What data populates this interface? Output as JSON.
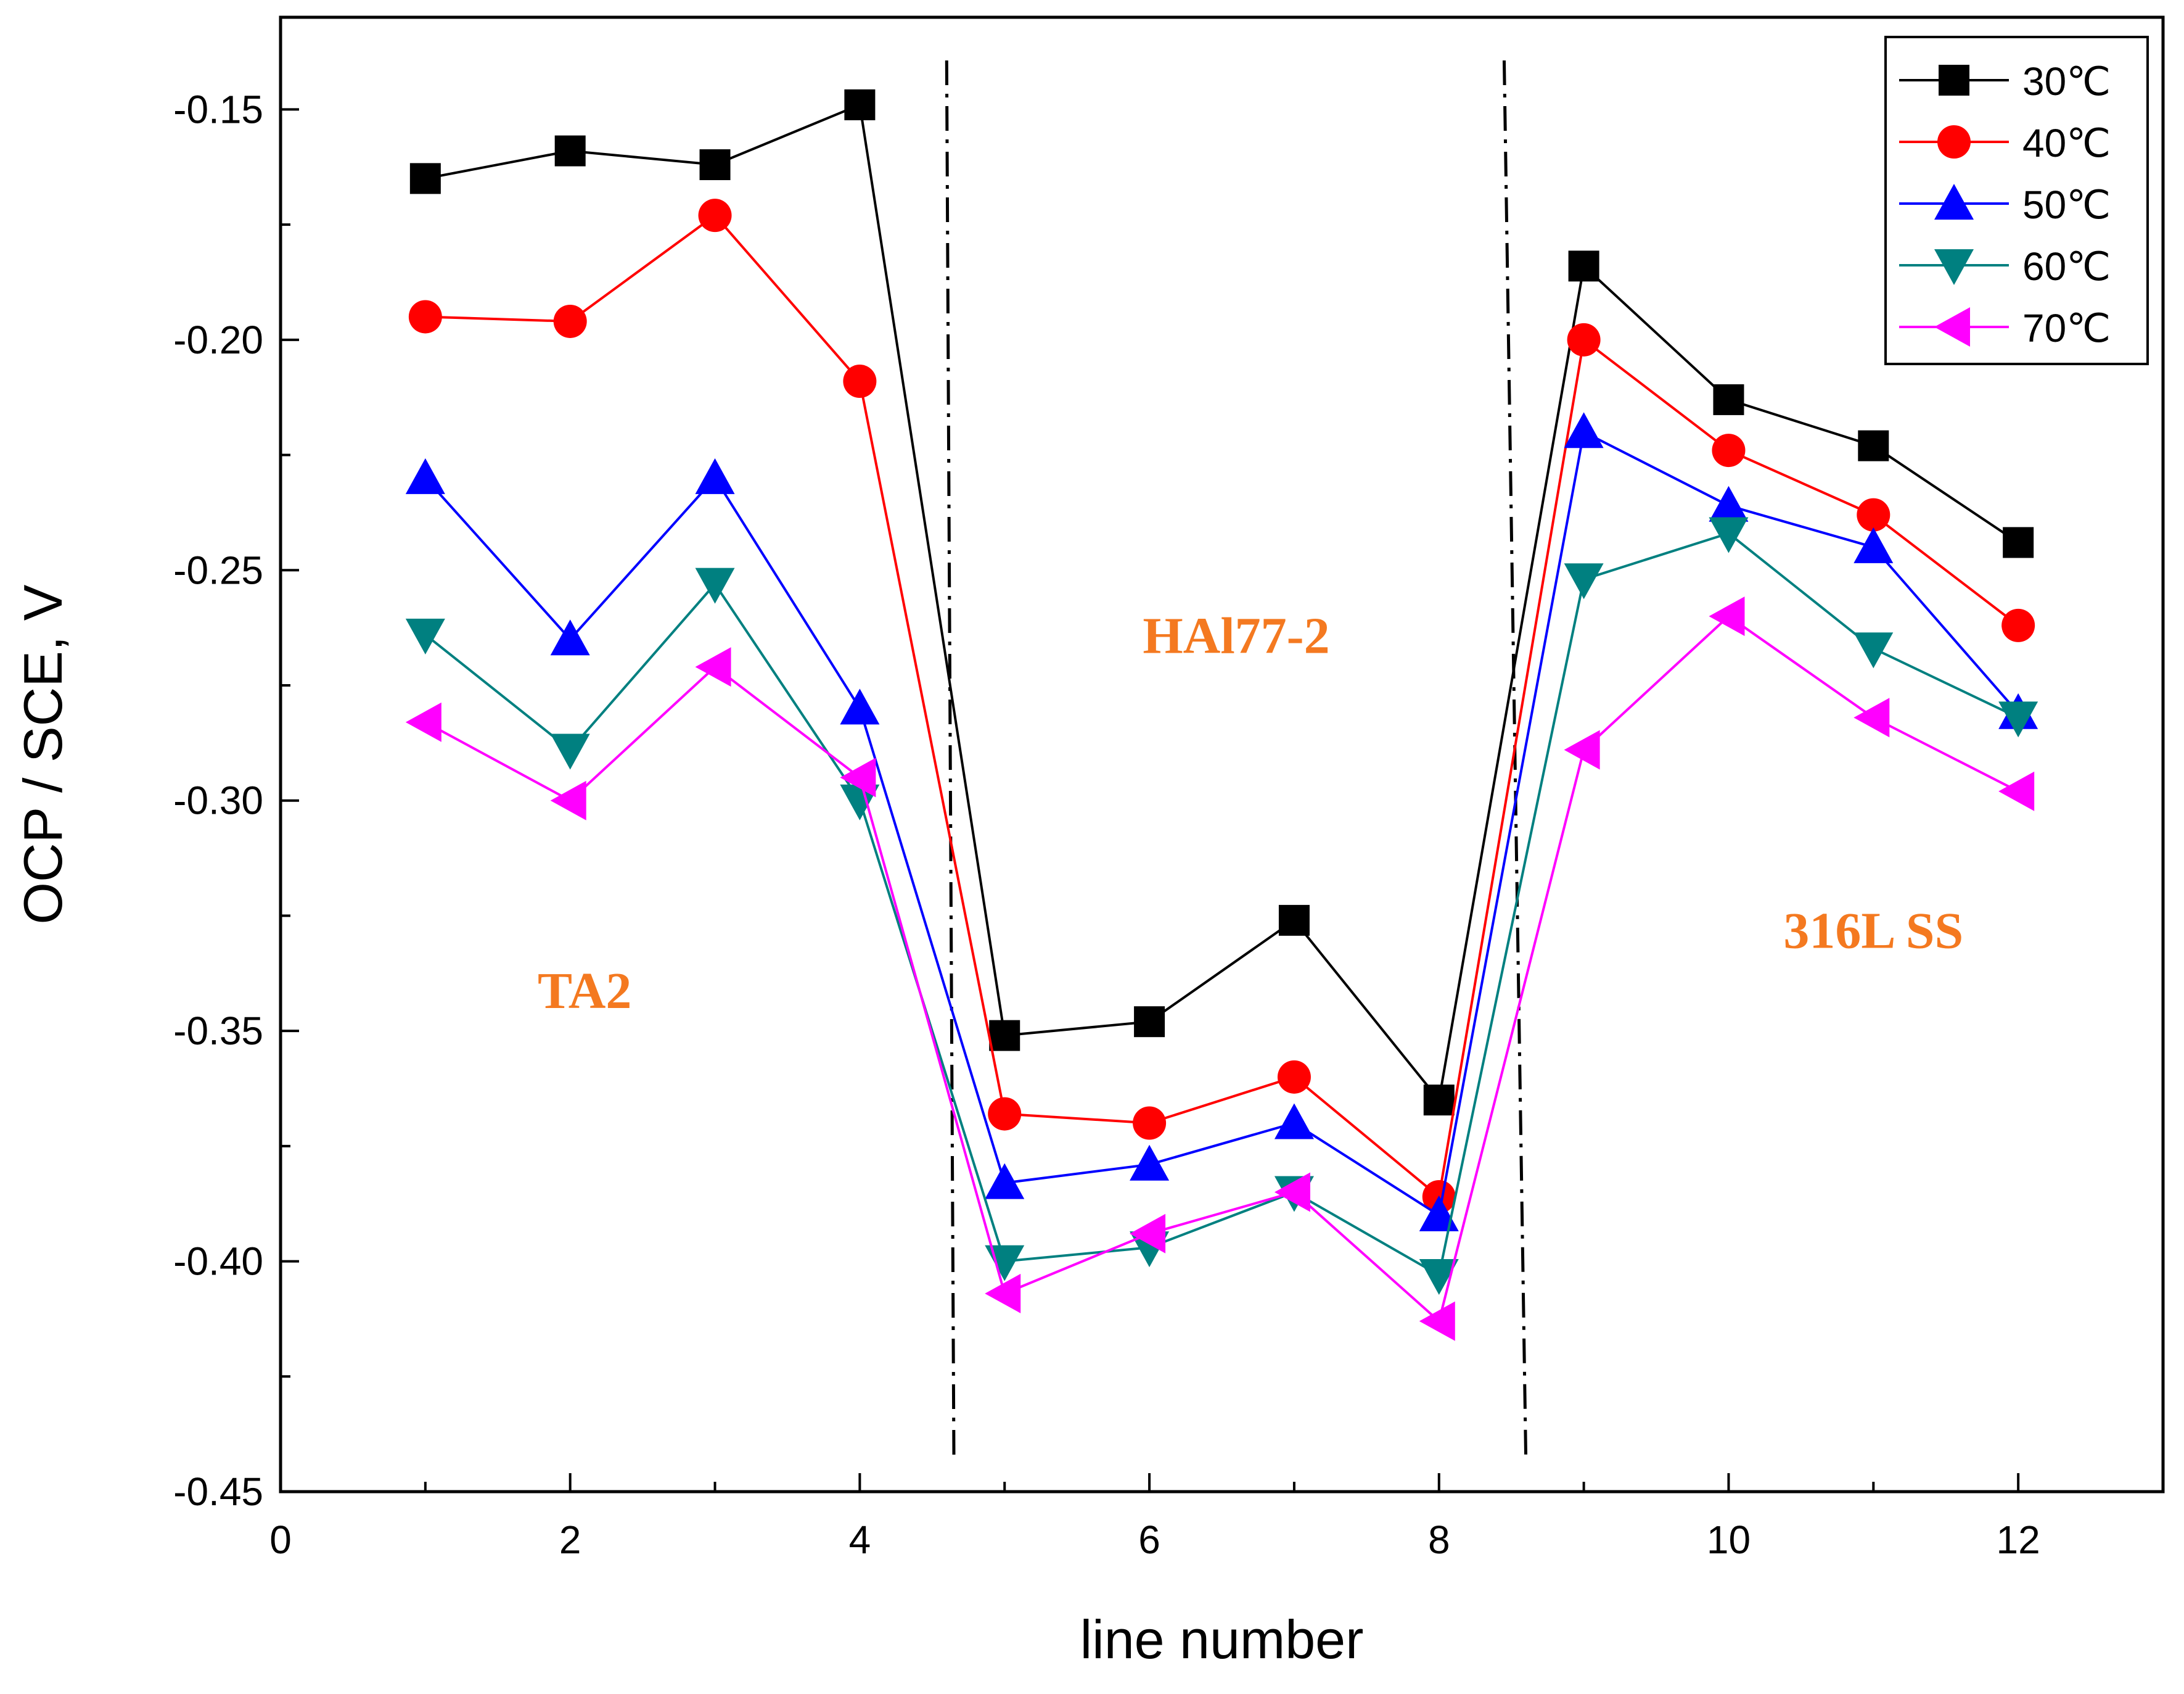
{
  "chart_data": {
    "type": "line",
    "title": "",
    "xlabel": "line number",
    "ylabel": "OCP / SCE, V",
    "xlim": [
      0,
      13
    ],
    "ylim": [
      -0.45,
      -0.13
    ],
    "xticks": [
      0,
      2,
      4,
      6,
      8,
      10,
      12
    ],
    "xtick_labels": [
      "0",
      "2",
      "4",
      "6",
      "8",
      "10",
      "12"
    ],
    "yticks": [
      -0.45,
      -0.4,
      -0.35,
      -0.3,
      -0.25,
      -0.2,
      -0.15
    ],
    "ytick_labels": [
      "-0.45",
      "-0.40",
      "-0.35",
      "-0.30",
      "-0.25",
      "-0.20",
      "-0.15"
    ],
    "grid": false,
    "legend_position": "top-right",
    "x": [
      1,
      2,
      3,
      4,
      5,
      6,
      7,
      8,
      9,
      10,
      11,
      12
    ],
    "series": [
      {
        "name": "30℃",
        "color": "#000000",
        "marker": "square",
        "values": [
          -0.165,
          -0.159,
          -0.162,
          -0.149,
          -0.351,
          -0.348,
          -0.326,
          -0.365,
          -0.184,
          -0.213,
          -0.223,
          -0.244
        ]
      },
      {
        "name": "40℃",
        "color": "#ff0000",
        "marker": "circle",
        "values": [
          -0.195,
          -0.196,
          -0.173,
          -0.209,
          -0.368,
          -0.37,
          -0.36,
          -0.386,
          -0.2,
          -0.224,
          -0.238,
          -0.262
        ]
      },
      {
        "name": "50℃",
        "color": "#0000ff",
        "marker": "triangle-up",
        "values": [
          -0.23,
          -0.265,
          -0.23,
          -0.28,
          -0.383,
          -0.379,
          -0.37,
          -0.39,
          -0.22,
          -0.236,
          -0.245,
          -0.281
        ]
      },
      {
        "name": "60℃",
        "color": "#008080",
        "marker": "triangle-down",
        "values": [
          -0.264,
          -0.289,
          -0.253,
          -0.3,
          -0.4,
          -0.397,
          -0.385,
          -0.403,
          -0.252,
          -0.242,
          -0.267,
          -0.282
        ]
      },
      {
        "name": "70℃",
        "color": "#ff00ff",
        "marker": "triangle-left",
        "values": [
          -0.283,
          -0.3,
          -0.271,
          -0.295,
          -0.407,
          -0.394,
          -0.385,
          -0.413,
          -0.289,
          -0.26,
          -0.282,
          -0.298
        ]
      }
    ],
    "dividers": [
      {
        "x_top": 4.6,
        "x_bottom": 4.65,
        "style": "dash-dot"
      },
      {
        "x_top": 8.45,
        "x_bottom": 8.6,
        "style": "dash-dot"
      }
    ],
    "annotations": [
      {
        "text": "TA2",
        "x": 2.1,
        "y": -0.345
      },
      {
        "text": "HAl77-2",
        "x": 6.6,
        "y": -0.268
      },
      {
        "text": "316L SS",
        "x": 11.0,
        "y": -0.332
      }
    ]
  }
}
